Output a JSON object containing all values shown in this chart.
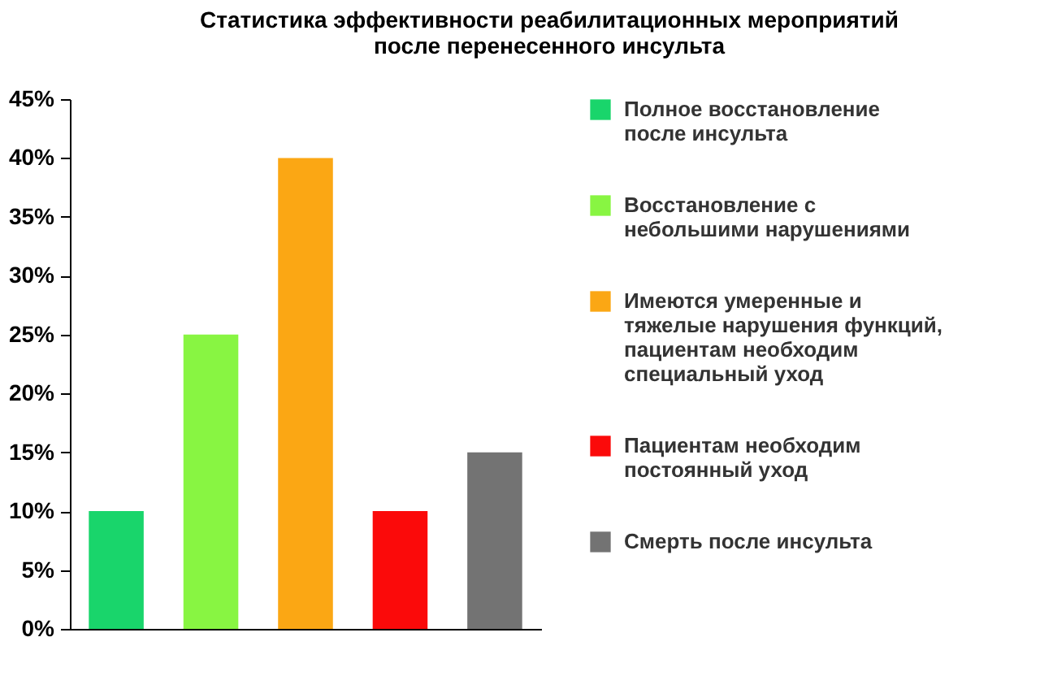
{
  "chart_data": {
    "type": "bar",
    "title": "Статистика эффективности реабилитационных мероприятий после перенесенного инсульта",
    "categories": [
      null,
      null,
      null,
      null,
      null
    ],
    "series": [
      {
        "name": "Полное восстановление после инсульта",
        "color": "#19d56b",
        "values": [
          10,
          null,
          null,
          null,
          null
        ]
      },
      {
        "name": "Восстановление с небольшими нарушениями",
        "color": "#88f542",
        "values": [
          null,
          25,
          null,
          null,
          null
        ]
      },
      {
        "name": "Имеются умеренные и тяжелые нарушения функций, пациентам необходим специальный уход",
        "color": "#fba714",
        "values": [
          null,
          null,
          40,
          null,
          null
        ]
      },
      {
        "name": "Пациентам необходим постоянный уход",
        "color": "#fb0a0a",
        "values": [
          null,
          null,
          null,
          10,
          null
        ]
      },
      {
        "name": "Смерть после инсульта",
        "color": "#737373",
        "values": [
          null,
          null,
          null,
          null,
          15
        ]
      }
    ],
    "ylim": [
      0,
      45
    ],
    "yticks": [
      {
        "value": 0,
        "label": "0%"
      },
      {
        "value": 5,
        "label": "5%"
      },
      {
        "value": 10,
        "label": "10%"
      },
      {
        "value": 15,
        "label": "15%"
      },
      {
        "value": 20,
        "label": "20%"
      },
      {
        "value": 25,
        "label": "25%"
      },
      {
        "value": 30,
        "label": "30%"
      },
      {
        "value": 35,
        "label": "35%"
      },
      {
        "value": 40,
        "label": "40%"
      },
      {
        "value": 45,
        "label": "45%"
      }
    ],
    "grid": false,
    "legend": "right"
  }
}
